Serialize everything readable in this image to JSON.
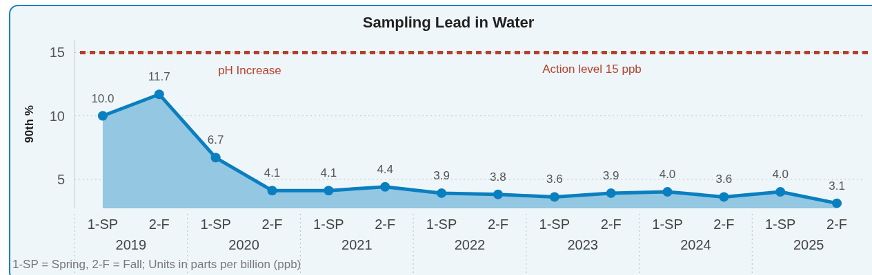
{
  "chart_data": {
    "type": "area",
    "title": "Sampling Lead in Water",
    "ylabel": "90th %",
    "categories": [
      "1-SP",
      "2-F",
      "1-SP",
      "2-F",
      "1-SP",
      "2-F",
      "1-SP",
      "2-F",
      "1-SP",
      "2-F",
      "1-SP",
      "2-F",
      "1-SP",
      "2-F"
    ],
    "series": [
      {
        "color": "#0a7fbf",
        "values": [
          10.0,
          11.7,
          6.7,
          4.1,
          4.1,
          4.4,
          3.9,
          3.8,
          3.6,
          3.9,
          4.0,
          3.6,
          4.0,
          3.1
        ],
        "value_labels": [
          "10.0",
          "11.7",
          "6.7",
          "4.1",
          "4.1",
          "4.4",
          "3.9",
          "3.8",
          "3.6",
          "3.9",
          "4.0",
          "3.6",
          "4.0",
          "3.1"
        ]
      }
    ],
    "ylim": [
      2.7,
      16
    ],
    "yticks": [
      5,
      10,
      15
    ],
    "grid": "y",
    "marker": "circle",
    "line_style": "solid",
    "ref_lines": [
      {
        "axis": "y",
        "value": 15,
        "label": "Action level 15 ppb",
        "color": "#b5402c",
        "line_style": "dashed"
      }
    ],
    "annotations": [
      "pH Increase",
      "2019",
      "2020",
      "2021",
      "2022",
      "2023",
      "2024",
      "2025",
      "1-SP = Spring, 2-F = Fall; Units in parts per billion (ppb)"
    ]
  }
}
